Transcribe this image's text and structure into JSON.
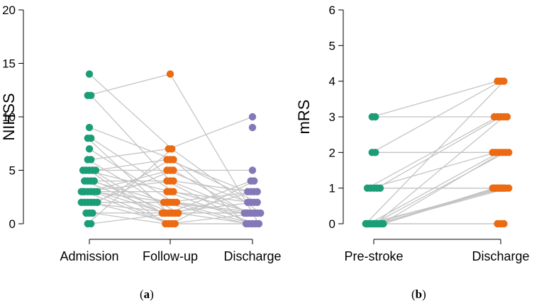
{
  "colors": {
    "axis": "#000000",
    "connector": "#c4c4c4",
    "teal": "#1b9e77",
    "orange": "#ec6a12",
    "purple": "#8478b8"
  },
  "captions": {
    "a": "a",
    "b": "b"
  },
  "chart_data": [
    {
      "id": "a",
      "type": "scatter",
      "title": "",
      "xlabel": "",
      "ylabel": "NIHSS",
      "ylim": [
        0,
        20
      ],
      "yticks": [
        "0",
        "5",
        "10",
        "15",
        "20"
      ],
      "categories": [
        "Admission",
        "Follow-up",
        "Discharge"
      ],
      "series": [
        {
          "name": "Admission",
          "color": "teal",
          "values": [
            14,
            12,
            12,
            9,
            8,
            8,
            7,
            6,
            6,
            5,
            5,
            5,
            5,
            5,
            4,
            4,
            4,
            4,
            3,
            3,
            3,
            3,
            3,
            3,
            3,
            2,
            2,
            2,
            2,
            2,
            2,
            1,
            1,
            1,
            0,
            0
          ]
        },
        {
          "name": "Follow-up",
          "color": "orange",
          "values": [
            14,
            7,
            7,
            6,
            6,
            6,
            5,
            5,
            5,
            4,
            4,
            4,
            3,
            3,
            3,
            2,
            2,
            2,
            2,
            2,
            1,
            1,
            1,
            1,
            1,
            1,
            1,
            0,
            0,
            0,
            0
          ]
        },
        {
          "name": "Discharge",
          "color": "purple",
          "values": [
            10,
            9,
            5,
            4,
            4,
            3,
            3,
            3,
            3,
            2,
            2,
            2,
            2,
            1,
            1,
            1,
            1,
            1,
            1,
            1,
            0,
            0,
            0,
            0,
            0
          ]
        }
      ]
    },
    {
      "id": "b",
      "type": "scatter",
      "title": "",
      "xlabel": "",
      "ylabel": "mRS",
      "ylim": [
        0,
        6
      ],
      "yticks": [
        "0",
        "1",
        "2",
        "3",
        "4",
        "5",
        "6"
      ],
      "categories": [
        "Pre-stroke",
        "Discharge"
      ],
      "series": [
        {
          "name": "Pre-stroke",
          "color": "teal",
          "values": [
            3,
            3,
            2,
            2,
            1,
            1,
            1,
            1,
            1,
            0,
            0,
            0,
            0,
            0,
            0,
            0,
            0,
            0,
            0,
            0,
            0,
            0
          ]
        },
        {
          "name": "Discharge",
          "color": "orange",
          "values": [
            4,
            4,
            4,
            3,
            3,
            3,
            3,
            3,
            2,
            2,
            2,
            2,
            2,
            2,
            1,
            1,
            1,
            1,
            1,
            1,
            1,
            1,
            1,
            1,
            0,
            0,
            0
          ]
        }
      ]
    }
  ]
}
